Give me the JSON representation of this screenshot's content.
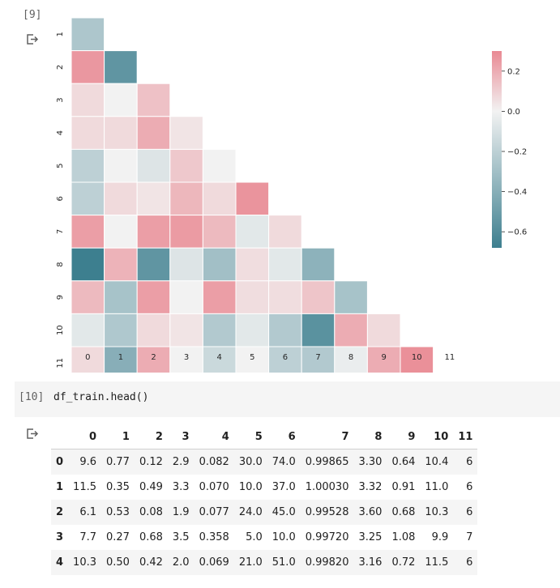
{
  "cell9": {
    "prompt": "[9]"
  },
  "cell10": {
    "prompt": "[10]",
    "code": "df_train.head()"
  },
  "heatmap": {
    "x_ticks": [
      "0",
      "1",
      "2",
      "3",
      "4",
      "5",
      "6",
      "7",
      "8",
      "9",
      "10",
      "11"
    ],
    "y_ticks": [
      "1",
      "2",
      "3",
      "4",
      "5",
      "6",
      "7",
      "8",
      "9",
      "10",
      "11"
    ],
    "colorbar_ticks": [
      {
        "label": "0.2",
        "value": 0.2
      },
      {
        "label": "0.0",
        "value": 0.0
      },
      {
        "label": "−0.2",
        "value": -0.2
      },
      {
        "label": "−0.4",
        "value": -0.4
      },
      {
        "label": "−0.6",
        "value": -0.6
      }
    ],
    "vmin": -0.68,
    "vmax": 0.3,
    "colors": {
      "negative": "#3d7f8f",
      "neutral": "#f2f2f2",
      "positive": "#e98993"
    }
  },
  "chart_data": {
    "type": "heatmap",
    "title": "",
    "xlabel": "",
    "ylabel": "",
    "x": [
      "0",
      "1",
      "2",
      "3",
      "4",
      "5",
      "6",
      "7",
      "8",
      "9",
      "10",
      "11"
    ],
    "y": [
      "1",
      "2",
      "3",
      "4",
      "5",
      "6",
      "7",
      "8",
      "9",
      "10",
      "11"
    ],
    "mask": "upper triangle",
    "colorbar_range": [
      -0.68,
      0.3
    ],
    "values": [
      [
        -0.26
      ],
      [
        0.26,
        -0.55
      ],
      [
        0.07,
        0.0,
        0.14
      ],
      [
        0.07,
        0.07,
        0.2,
        0.04
      ],
      [
        -0.2,
        0.0,
        -0.08,
        0.12,
        0.0
      ],
      [
        -0.2,
        0.07,
        0.04,
        0.17,
        0.07,
        0.27
      ],
      [
        0.24,
        0.0,
        0.24,
        0.25,
        0.16,
        -0.06,
        0.07
      ],
      [
        -0.68,
        0.18,
        -0.55,
        -0.08,
        -0.3,
        0.06,
        -0.06,
        -0.38
      ],
      [
        0.16,
        -0.28,
        0.24,
        0.0,
        0.24,
        0.06,
        0.06,
        0.13,
        -0.28
      ],
      [
        -0.06,
        -0.25,
        0.07,
        0.04,
        -0.24,
        -0.06,
        -0.24,
        -0.57,
        0.2,
        0.07
      ],
      [
        0.07,
        -0.4,
        0.2,
        0.0,
        -0.15,
        0.0,
        -0.2,
        -0.24,
        -0.03,
        0.2,
        0.28
      ]
    ]
  },
  "table": {
    "columns": [
      "0",
      "1",
      "2",
      "3",
      "4",
      "5",
      "6",
      "7",
      "8",
      "9",
      "10",
      "11"
    ],
    "rows": [
      {
        "index": "0",
        "cells": [
          "9.6",
          "0.77",
          "0.12",
          "2.9",
          "0.082",
          "30.0",
          "74.0",
          "0.99865",
          "3.30",
          "0.64",
          "10.4",
          "6"
        ]
      },
      {
        "index": "1",
        "cells": [
          "11.5",
          "0.35",
          "0.49",
          "3.3",
          "0.070",
          "10.0",
          "37.0",
          "1.00030",
          "3.32",
          "0.91",
          "11.0",
          "6"
        ]
      },
      {
        "index": "2",
        "cells": [
          "6.1",
          "0.53",
          "0.08",
          "1.9",
          "0.077",
          "24.0",
          "45.0",
          "0.99528",
          "3.60",
          "0.68",
          "10.3",
          "6"
        ]
      },
      {
        "index": "3",
        "cells": [
          "7.7",
          "0.27",
          "0.68",
          "3.5",
          "0.358",
          "5.0",
          "10.0",
          "0.99720",
          "3.25",
          "1.08",
          "9.9",
          "7"
        ]
      },
      {
        "index": "4",
        "cells": [
          "10.3",
          "0.50",
          "0.42",
          "2.0",
          "0.069",
          "21.0",
          "51.0",
          "0.99820",
          "3.16",
          "0.72",
          "11.5",
          "6"
        ]
      }
    ]
  }
}
